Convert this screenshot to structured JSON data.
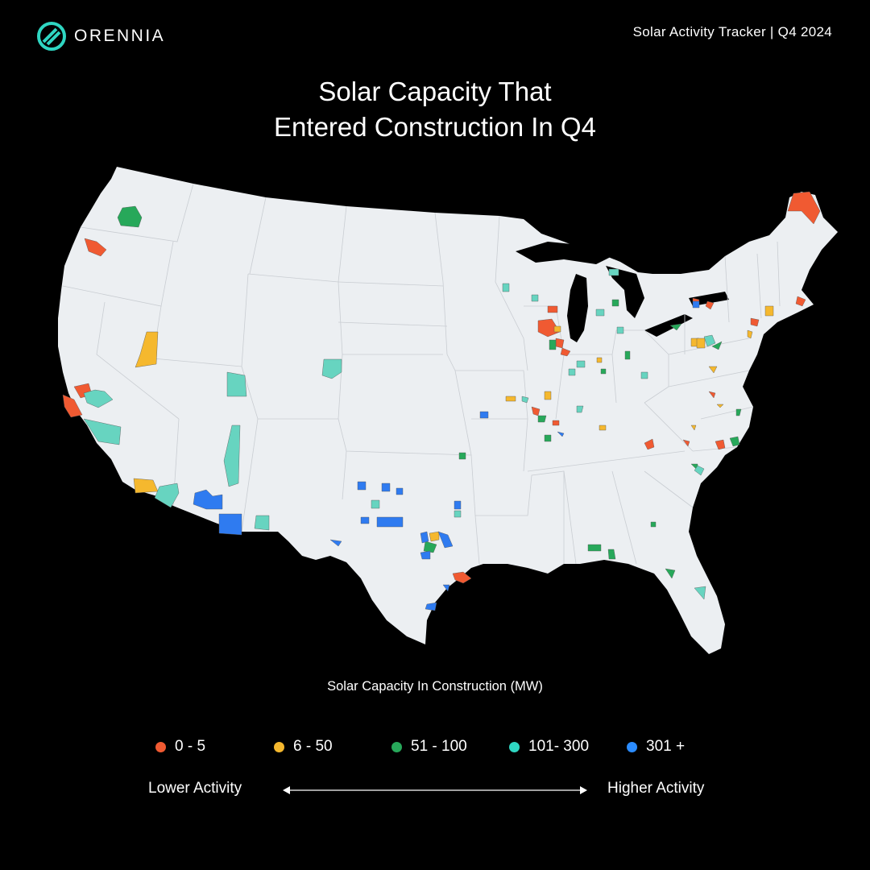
{
  "header": {
    "brand": "ORENNIA",
    "tracker": "Solar Activity Tracker | Q4 2024"
  },
  "title": {
    "line1": "Solar Capacity That",
    "line2": "Entered Construction In Q4"
  },
  "legend": {
    "title": "Solar Capacity In Construction (MW)",
    "items": [
      {
        "label": "0 - 5",
        "color": "#f05a32"
      },
      {
        "label": "6 - 50",
        "color": "#f5b82e"
      },
      {
        "label": "51 - 100",
        "color": "#27a85a"
      },
      {
        "label": "101- 300",
        "color": "#2fd6c2"
      },
      {
        "label": "301 +",
        "color": "#2b8cff"
      }
    ],
    "low_label": "Lower Activity",
    "high_label": "Higher Activity"
  },
  "colors": {
    "land": "#eceff2",
    "border": "#c9cdd2",
    "background": "#000000",
    "brand_accent": "#2fd6c2"
  }
}
